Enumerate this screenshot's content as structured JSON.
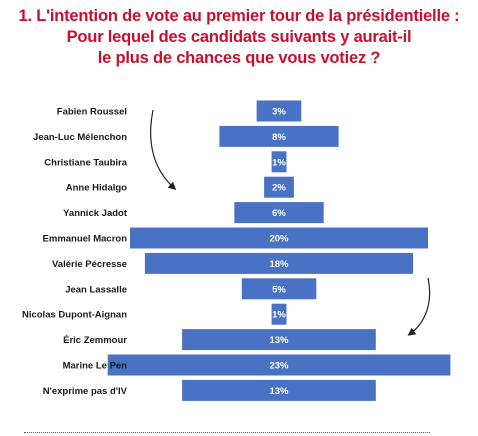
{
  "title_lines": [
    "1. L'intention de vote au premier tour de la présidentielle :",
    "Pour lequel des candidats suivants y aurait-il",
    "le plus de chances que vous votiez ?"
  ],
  "colors": {
    "title": "#c8102e",
    "bar": "#4a72c4",
    "value_text": "#ffffff",
    "arrow": "#222222"
  },
  "chart_data": {
    "type": "bar",
    "orientation": "horizontal-centered",
    "categories": [
      "Fabien Roussel",
      "Jean-Luc Mélenchon",
      "Christiane Taubira",
      "Anne Hidalgo",
      "Yannick Jadot",
      "Emmanuel Macron",
      "Valérie Pécresse",
      "Jean Lassalle",
      "Nicolas Dupont-Aignan",
      "Éric Zemmour",
      "Marine Le Pen",
      "N'exprime pas d'IV"
    ],
    "values": [
      3,
      8,
      1,
      2,
      6,
      20,
      18,
      5,
      1,
      13,
      23,
      13
    ],
    "value_labels": [
      "3%",
      "8%",
      "1%",
      "2%",
      "6%",
      "20%",
      "18%",
      "5%",
      "1%",
      "13%",
      "23%",
      "13%"
    ],
    "xlim": [
      0,
      23
    ],
    "grid": false,
    "legend": "none"
  }
}
